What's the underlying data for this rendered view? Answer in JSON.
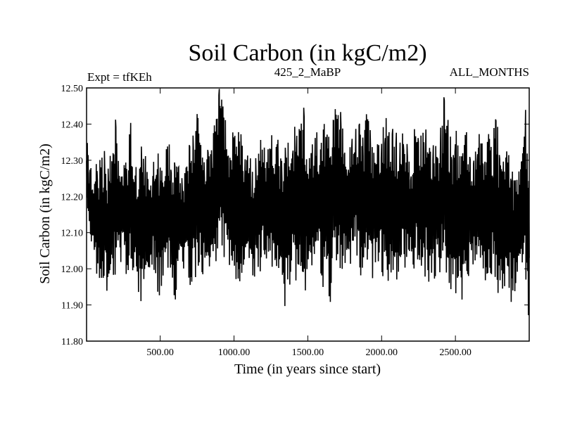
{
  "chart_data": {
    "type": "line",
    "title": "Soil Carbon (in kgC/m2)",
    "subtitle_left": "Expt = tfKEh",
    "subtitle_center": "425_2_MaBP",
    "subtitle_right": "ALL_MONTHS",
    "xlabel": "Time (in years since start)",
    "ylabel": "Soil Carbon (in kgC/m2)",
    "xlim": [
      1,
      3000
    ],
    "ylim": [
      11.8,
      12.5
    ],
    "x_ticks": [
      {
        "value": 500,
        "label": "500.00"
      },
      {
        "value": 1000,
        "label": "1000.00"
      },
      {
        "value": 1500,
        "label": "1500.00"
      },
      {
        "value": 2000,
        "label": "2000.00"
      },
      {
        "value": 2500,
        "label": "2500.00"
      }
    ],
    "y_ticks": [
      {
        "value": 11.8,
        "label": "11.80"
      },
      {
        "value": 11.9,
        "label": "11.90"
      },
      {
        "value": 12.0,
        "label": "12.00"
      },
      {
        "value": 12.1,
        "label": "12.10"
      },
      {
        "value": 12.2,
        "label": "12.20"
      },
      {
        "value": 12.3,
        "label": "12.30"
      },
      {
        "value": 12.4,
        "label": "12.40"
      },
      {
        "value": 12.5,
        "label": "12.50"
      }
    ],
    "series": [
      {
        "color": "#000000",
        "x": [
          1,
          25,
          50,
          75,
          100,
          125,
          150,
          175,
          200,
          225,
          250,
          275,
          300,
          325,
          350,
          375,
          400,
          425,
          450,
          475,
          500,
          525,
          550,
          575,
          600,
          625,
          650,
          675,
          700,
          725,
          750,
          775,
          800,
          825,
          850,
          875,
          900,
          925,
          950,
          975,
          1000,
          1025,
          1050,
          1075,
          1100,
          1125,
          1150,
          1175,
          1200,
          1225,
          1250,
          1275,
          1300,
          1325,
          1350,
          1375,
          1400,
          1425,
          1450,
          1475,
          1500,
          1525,
          1550,
          1575,
          1600,
          1625,
          1650,
          1675,
          1700,
          1725,
          1750,
          1775,
          1800,
          1825,
          1850,
          1875,
          1900,
          1925,
          1950,
          1975,
          2000,
          2025,
          2050,
          2075,
          2100,
          2125,
          2150,
          2175,
          2200,
          2225,
          2250,
          2275,
          2300,
          2325,
          2350,
          2375,
          2400,
          2425,
          2450,
          2475,
          2500,
          2525,
          2550,
          2575,
          2600,
          2625,
          2650,
          2675,
          2700,
          2725,
          2750,
          2775,
          2800,
          2825,
          2850,
          2875,
          2900,
          2925,
          2950,
          2975,
          3000
        ],
        "min": [
          12.15,
          12.04,
          12.0,
          11.97,
          11.94,
          11.96,
          11.88,
          11.96,
          11.98,
          12.02,
          12.0,
          11.96,
          11.97,
          12.0,
          11.92,
          11.89,
          11.96,
          11.98,
          12.0,
          11.94,
          11.92,
          11.97,
          12.0,
          11.98,
          11.9,
          11.96,
          12.0,
          12.0,
          11.94,
          11.97,
          11.98,
          11.96,
          11.99,
          11.98,
          12.0,
          12.0,
          12.04,
          12.02,
          12.0,
          12.0,
          11.98,
          11.95,
          11.94,
          11.94,
          11.97,
          11.96,
          11.97,
          11.98,
          12.0,
          11.97,
          11.96,
          11.96,
          11.96,
          11.92,
          11.88,
          11.94,
          11.98,
          11.96,
          11.95,
          11.93,
          11.96,
          11.98,
          11.93,
          12.0,
          11.93,
          11.91,
          11.89,
          11.94,
          11.96,
          11.98,
          11.96,
          11.99,
          12.01,
          12.04,
          11.96,
          11.99,
          11.99,
          11.97,
          11.96,
          11.99,
          11.98,
          11.97,
          11.96,
          11.95,
          11.93,
          11.98,
          11.99,
          12.0,
          11.99,
          12.0,
          12.02,
          12.0,
          11.97,
          11.95,
          11.97,
          11.96,
          11.98,
          11.97,
          11.95,
          11.93,
          11.86,
          11.88,
          11.92,
          11.98,
          11.96,
          11.99,
          12.01,
          11.97,
          11.96,
          11.96,
          11.99,
          11.95,
          11.89,
          11.94,
          11.97,
          11.9,
          11.93,
          11.92,
          12.0,
          11.97,
          11.84
        ],
        "max": [
          12.37,
          12.28,
          12.3,
          12.29,
          12.31,
          12.33,
          12.28,
          12.36,
          12.44,
          12.28,
          12.33,
          12.32,
          12.43,
          12.27,
          12.3,
          12.38,
          12.32,
          12.26,
          12.29,
          12.35,
          12.31,
          12.27,
          12.38,
          12.31,
          12.3,
          12.32,
          12.26,
          12.28,
          12.36,
          12.39,
          12.43,
          12.38,
          12.33,
          12.4,
          12.36,
          12.44,
          12.5,
          12.46,
          12.39,
          12.33,
          12.42,
          12.47,
          12.36,
          12.33,
          12.35,
          12.29,
          12.33,
          12.35,
          12.39,
          12.34,
          12.44,
          12.37,
          12.37,
          12.32,
          12.37,
          12.35,
          12.39,
          12.4,
          12.43,
          12.45,
          12.37,
          12.35,
          12.39,
          12.37,
          12.41,
          12.44,
          12.37,
          12.45,
          12.48,
          12.44,
          12.37,
          12.33,
          12.38,
          12.39,
          12.43,
          12.36,
          12.49,
          12.38,
          12.34,
          12.35,
          12.38,
          12.45,
          12.39,
          12.43,
          12.39,
          12.4,
          12.39,
          12.35,
          12.3,
          12.42,
          12.37,
          12.39,
          12.46,
          12.37,
          12.37,
          12.34,
          12.4,
          12.49,
          12.42,
          12.37,
          12.39,
          12.37,
          12.33,
          12.4,
          12.37,
          12.31,
          12.4,
          12.36,
          12.33,
          12.38,
          12.35,
          12.47,
          12.31,
          12.3,
          12.34,
          12.31,
          12.26,
          12.26,
          12.34,
          12.44,
          12.22
        ]
      }
    ]
  }
}
